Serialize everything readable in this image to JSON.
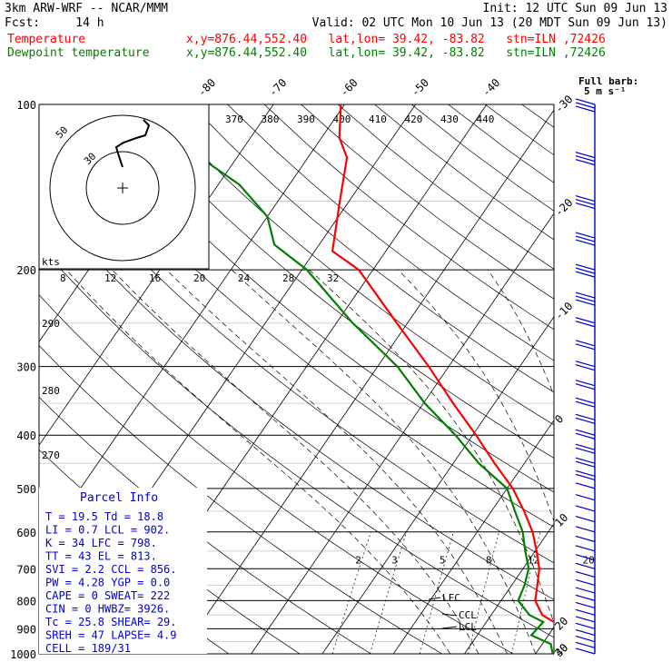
{
  "header": {
    "model": "3km ARW-WRF -- NCAR/MMM",
    "init": "Init: 12 UTC Sun 09 Jun 13",
    "fcst": "Fcst:     14 h",
    "valid": "Valid: 02 UTC Mon 10 Jun 13 (20 MDT Sun 09 Jun 13)",
    "temp_label": "Temperature",
    "dew_label": "Dewpoint temperature",
    "loc_info": "x,y=876.44,552.40   lat,lon= 39.42, -83.82   stn=ILN ,72426"
  },
  "colors": {
    "temperature": "#ff0000",
    "dewpoint": "#008000",
    "hodograph": "#000000",
    "barbs": "#0000cc",
    "parcel_title": "#0000cc"
  },
  "wind_legend": {
    "line1": "Full barb:",
    "line2": "5 m s⁻¹"
  },
  "parcel": {
    "title": "Parcel Info",
    "rows": [
      "T  =   19.5  Td =  18.8",
      "LI =    0.7  LCL =  902.",
      "K  =     34  LFC =  798.",
      "TT =     43  EL  =  813.",
      "SVI =   2.2  CCL =  856.",
      "PW =   4.28  YGP =   0.0",
      "CAPE =    0  SWEAT=  222",
      "CIN =     0  HWBZ= 3926.",
      "Tc =   25.8  SHEAR=  29.",
      "SREH =   47  LAPSE=  4.9",
      "CELL = 189/31"
    ]
  },
  "levels": {
    "lfc": "LFC",
    "ccl": "CCL",
    "lcl": "LCL"
  },
  "hodograph": {
    "units": "kts",
    "ring_labels": [
      "50",
      "30"
    ]
  },
  "chart_data": {
    "type": "line",
    "title": "",
    "yaxis": "Pressure (hPa), log scale",
    "ylim": [
      1000,
      100
    ],
    "xaxis_skewed": "Temperature (°C)",
    "pressure_ticks": [
      100,
      200,
      300,
      400,
      500,
      600,
      700,
      800,
      900,
      1000
    ],
    "isotherm_labels": [
      -80,
      -70,
      -60,
      -50,
      -40,
      -30,
      -20,
      -10,
      0,
      10,
      20,
      30,
      40
    ],
    "theta_labels": [
      370,
      380,
      390,
      400,
      410,
      420,
      430,
      440
    ],
    "theta_left_labels": [
      290,
      280,
      270
    ],
    "theta_e_labels": [
      8,
      12,
      16,
      20,
      24,
      28,
      32
    ],
    "mixing_ratio_labels": [
      2,
      3,
      5,
      8,
      12,
      20
    ],
    "series": [
      {
        "name": "Temperature",
        "points": [
          [
            1000,
            24.5
          ],
          [
            950,
            22.8
          ],
          [
            900,
            20.8
          ],
          [
            875,
            19.5
          ],
          [
            850,
            17.2
          ],
          [
            800,
            14.8
          ],
          [
            750,
            13.6
          ],
          [
            700,
            12.3
          ],
          [
            650,
            10.2
          ],
          [
            600,
            7.8
          ],
          [
            550,
            4.6
          ],
          [
            500,
            0.8
          ],
          [
            450,
            -4.2
          ],
          [
            400,
            -9.5
          ],
          [
            350,
            -15.8
          ],
          [
            300,
            -22.8
          ],
          [
            250,
            -31.5
          ],
          [
            200,
            -42
          ],
          [
            185,
            -47.5
          ],
          [
            150,
            -51.3
          ],
          [
            125,
            -54.5
          ],
          [
            115,
            -57.5
          ],
          [
            100,
            -60.5
          ]
        ]
      },
      {
        "name": "Dewpoint temperature",
        "points": [
          [
            1000,
            22.4
          ],
          [
            960,
            21.2
          ],
          [
            925,
            17.6
          ],
          [
            875,
            18.0
          ],
          [
            850,
            15.4
          ],
          [
            800,
            12.4
          ],
          [
            750,
            11.8
          ],
          [
            700,
            10.8
          ],
          [
            650,
            8.6
          ],
          [
            600,
            6.4
          ],
          [
            550,
            3.3
          ],
          [
            500,
            0.0
          ],
          [
            450,
            -6.4
          ],
          [
            400,
            -12.4
          ],
          [
            350,
            -19.8
          ],
          [
            300,
            -27.2
          ],
          [
            250,
            -37.7
          ],
          [
            200,
            -49.3
          ],
          [
            180,
            -56.3
          ],
          [
            160,
            -60
          ],
          [
            140,
            -67
          ],
          [
            120,
            -78
          ],
          [
            100,
            -81
          ]
        ]
      }
    ]
  }
}
